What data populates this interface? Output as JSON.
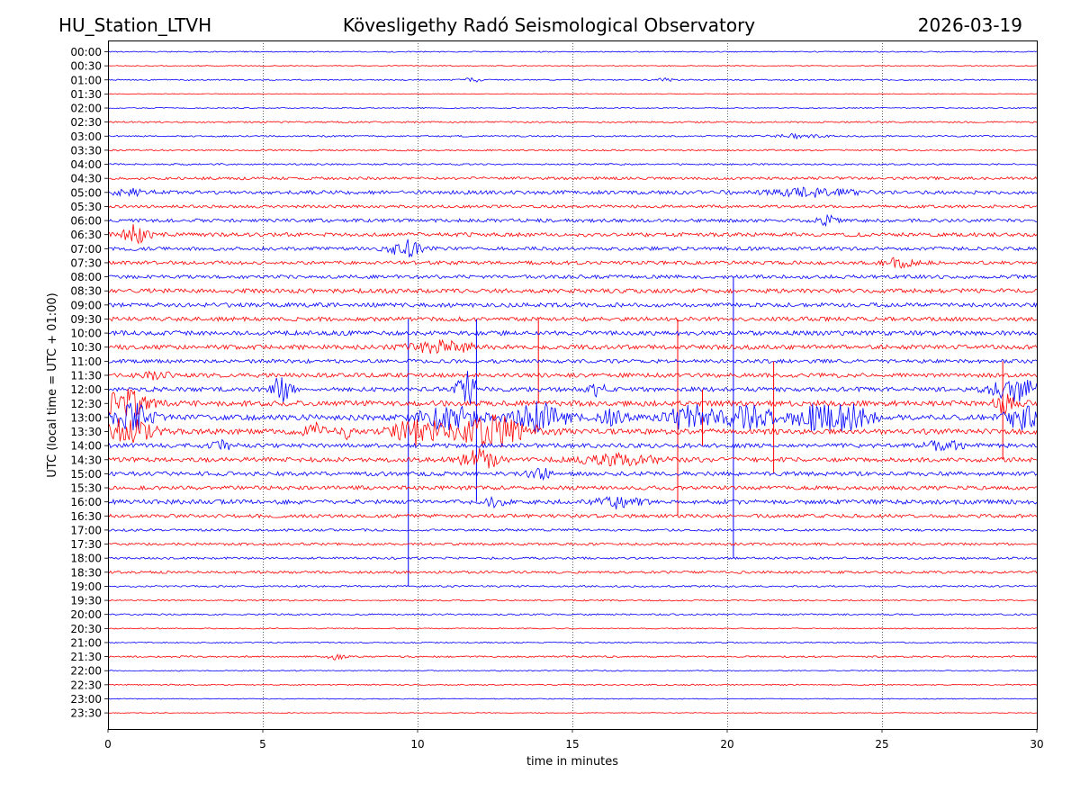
{
  "header": {
    "station": "HU_Station_LTVH",
    "observatory": "Kövesligethy Radó Seismological Observatory",
    "date": "2026-03-19"
  },
  "colors": {
    "odd_trace": "#0000ff",
    "even_trace": "#ff0000",
    "axes": "#000000",
    "grid": "#000000",
    "background": "#ffffff"
  },
  "chart_data": {
    "type": "line",
    "title": "Kövesligethy Radó Seismological Observatory",
    "xlabel": "time in minutes",
    "ylabel": "UTC (local time = UTC + 01:00)",
    "xlim": [
      0,
      30
    ],
    "xticks": [
      0,
      5,
      10,
      15,
      20,
      25,
      30
    ],
    "grid": "vertical dotted at 5-minute intervals",
    "row_labels": [
      "00:00",
      "00:30",
      "01:00",
      "01:30",
      "02:00",
      "02:30",
      "03:00",
      "03:30",
      "04:00",
      "04:30",
      "05:00",
      "05:30",
      "06:00",
      "06:30",
      "07:00",
      "07:30",
      "08:00",
      "08:30",
      "09:00",
      "09:30",
      "10:00",
      "10:30",
      "11:00",
      "11:30",
      "12:00",
      "12:30",
      "13:00",
      "13:30",
      "14:00",
      "14:30",
      "15:00",
      "15:30",
      "16:00",
      "16:30",
      "17:00",
      "17:30",
      "18:00",
      "18:30",
      "19:00",
      "19:30",
      "20:00",
      "20:30",
      "21:00",
      "21:30",
      "22:00",
      "22:30",
      "23:00",
      "23:30"
    ],
    "noise_level": [
      0.6,
      0.5,
      0.7,
      0.4,
      0.6,
      0.9,
      0.9,
      0.9,
      0.9,
      1.6,
      2.1,
      1.6,
      1.9,
      2.2,
      2.0,
      2.0,
      2.0,
      2.4,
      2.3,
      2.3,
      2.5,
      2.5,
      2.1,
      2.3,
      2.5,
      3.0,
      3.1,
      3.0,
      2.4,
      2.5,
      2.3,
      2.2,
      2.5,
      2.0,
      1.3,
      1.4,
      1.2,
      1.4,
      1.0,
      0.8,
      0.9,
      0.6,
      0.7,
      0.9,
      0.6,
      0.7,
      0.5,
      0.4
    ],
    "events": [
      {
        "row": 2,
        "t": 11.8,
        "amp": 2,
        "dur": 0.6
      },
      {
        "row": 2,
        "t": 18.0,
        "amp": 2,
        "dur": 0.5
      },
      {
        "row": 6,
        "t": 22.2,
        "amp": 2,
        "dur": 1.5
      },
      {
        "row": 10,
        "t": 0.7,
        "amp": 3,
        "dur": 1.2
      },
      {
        "row": 10,
        "t": 22.8,
        "amp": 4,
        "dur": 2.5
      },
      {
        "row": 12,
        "t": 23.2,
        "amp": 5,
        "dur": 0.6
      },
      {
        "row": 13,
        "t": 0.9,
        "amp": 10,
        "dur": 0.8
      },
      {
        "row": 14,
        "t": 9.6,
        "amp": 9,
        "dur": 1.0
      },
      {
        "row": 15,
        "t": 25.6,
        "amp": 5,
        "dur": 1.0
      },
      {
        "row": 21,
        "t": 10.8,
        "amp": 6,
        "dur": 2.0
      },
      {
        "row": 23,
        "t": 1.5,
        "amp": 4,
        "dur": 1.0
      },
      {
        "row": 24,
        "t": 5.6,
        "amp": 14,
        "dur": 0.6
      },
      {
        "row": 24,
        "t": 11.6,
        "amp": 18,
        "dur": 0.6
      },
      {
        "row": 24,
        "t": 15.8,
        "amp": 6,
        "dur": 0.5
      },
      {
        "row": 24,
        "t": 29.3,
        "amp": 12,
        "dur": 1.5
      },
      {
        "row": 25,
        "t": 0.5,
        "amp": 14,
        "dur": 1.5
      },
      {
        "row": 25,
        "t": 29.0,
        "amp": 10,
        "dur": 0.8
      },
      {
        "row": 26,
        "t": 0.8,
        "amp": 14,
        "dur": 1.2
      },
      {
        "row": 26,
        "t": 11.0,
        "amp": 12,
        "dur": 2.0
      },
      {
        "row": 26,
        "t": 14.0,
        "amp": 16,
        "dur": 1.6
      },
      {
        "row": 26,
        "t": 16.3,
        "amp": 8,
        "dur": 0.8
      },
      {
        "row": 26,
        "t": 18.8,
        "amp": 14,
        "dur": 1.6
      },
      {
        "row": 26,
        "t": 20.8,
        "amp": 12,
        "dur": 1.6
      },
      {
        "row": 26,
        "t": 22.8,
        "amp": 12,
        "dur": 1.4
      },
      {
        "row": 26,
        "t": 23.9,
        "amp": 14,
        "dur": 1.4
      },
      {
        "row": 26,
        "t": 29.5,
        "amp": 14,
        "dur": 1.0
      },
      {
        "row": 27,
        "t": 0.6,
        "amp": 14,
        "dur": 1.6
      },
      {
        "row": 27,
        "t": 6.7,
        "amp": 10,
        "dur": 0.6
      },
      {
        "row": 27,
        "t": 7.6,
        "amp": 10,
        "dur": 0.4
      },
      {
        "row": 27,
        "t": 10.0,
        "amp": 14,
        "dur": 1.5
      },
      {
        "row": 27,
        "t": 12.4,
        "amp": 16,
        "dur": 2.5
      },
      {
        "row": 28,
        "t": 3.7,
        "amp": 5,
        "dur": 0.6
      },
      {
        "row": 28,
        "t": 27.0,
        "amp": 5,
        "dur": 1.2
      },
      {
        "row": 29,
        "t": 12.0,
        "amp": 12,
        "dur": 1.2
      },
      {
        "row": 29,
        "t": 16.5,
        "amp": 5,
        "dur": 2.5
      },
      {
        "row": 30,
        "t": 14.0,
        "amp": 6,
        "dur": 0.8
      },
      {
        "row": 32,
        "t": 16.5,
        "amp": 6,
        "dur": 1.2
      },
      {
        "row": 32,
        "t": 12.5,
        "amp": 4,
        "dur": 0.6
      },
      {
        "row": 43,
        "t": 7.4,
        "amp": 3,
        "dur": 0.6
      }
    ],
    "spikes": [
      {
        "row": 20,
        "t": 9.7,
        "up": 1,
        "down": 18
      },
      {
        "row": 20,
        "t": 11.9,
        "up": 1,
        "down": 12
      },
      {
        "row": 19,
        "t": 13.9,
        "up": 0,
        "down": 6
      },
      {
        "row": 19,
        "t": 18.4,
        "up": 0,
        "down": 14
      },
      {
        "row": 16,
        "t": 20.2,
        "up": 0,
        "down": 20
      },
      {
        "row": 23,
        "t": 21.5,
        "up": 1,
        "down": 7
      },
      {
        "row": 23,
        "t": 28.9,
        "up": 1,
        "down": 6
      },
      {
        "row": 25,
        "t": 19.2,
        "up": 1,
        "down": 3
      }
    ]
  }
}
